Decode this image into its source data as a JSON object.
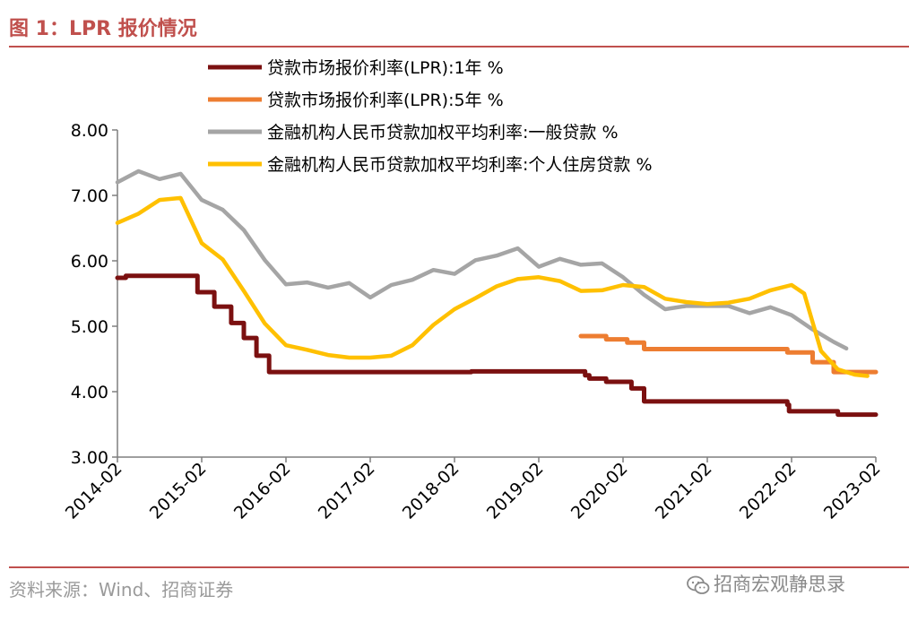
{
  "header": {
    "title": "图 1：LPR 报价情况"
  },
  "footer": {
    "source": "资料来源：Wind、招商证券",
    "watermark": "招商宏观静思录",
    "watermark_icon": "wechat-icon"
  },
  "colors": {
    "accent": "#c0504d",
    "lpr1y": "#7b1010",
    "lpr5y": "#ed7d31",
    "general": "#a5a5a5",
    "mortgage": "#ffc000"
  },
  "chart_data": {
    "type": "line",
    "title": "",
    "xlabel": "",
    "ylabel": "",
    "ylim": [
      3.0,
      8.0
    ],
    "yticks": [
      "3.00",
      "4.00",
      "5.00",
      "6.00",
      "7.00",
      "8.00"
    ],
    "xlim": [
      "2014-02",
      "2023-02"
    ],
    "xticks": [
      "2014-02",
      "2015-02",
      "2016-02",
      "2017-02",
      "2018-02",
      "2019-02",
      "2020-02",
      "2021-02",
      "2022-02",
      "2023-02"
    ],
    "grid": false,
    "legend": "top-right",
    "series": [
      {
        "name": "贷款市场报价利率(LPR):1年 %",
        "color": "#7b1010",
        "step": true,
        "width": 5,
        "points": [
          [
            0,
            5.74
          ],
          [
            0.1,
            5.77
          ],
          [
            0.4,
            5.77
          ],
          [
            0.9,
            5.77
          ],
          [
            0.95,
            5.52
          ],
          [
            1.1,
            5.52
          ],
          [
            1.15,
            5.3
          ],
          [
            1.3,
            5.3
          ],
          [
            1.35,
            5.05
          ],
          [
            1.45,
            5.05
          ],
          [
            1.5,
            4.82
          ],
          [
            1.6,
            4.82
          ],
          [
            1.65,
            4.55
          ],
          [
            1.75,
            4.55
          ],
          [
            1.8,
            4.3
          ],
          [
            4,
            4.3
          ],
          [
            4.2,
            4.31
          ],
          [
            5.5,
            4.31
          ],
          [
            5.55,
            4.25
          ],
          [
            5.6,
            4.2
          ],
          [
            5.75,
            4.2
          ],
          [
            5.8,
            4.15
          ],
          [
            6,
            4.15
          ],
          [
            6.1,
            4.05
          ],
          [
            6.2,
            4.05
          ],
          [
            6.25,
            3.85
          ],
          [
            7.9,
            3.85
          ],
          [
            7.95,
            3.8
          ],
          [
            7.97,
            3.7
          ],
          [
            8.5,
            3.7
          ],
          [
            8.55,
            3.65
          ],
          [
            9,
            3.65
          ]
        ]
      },
      {
        "name": "贷款市场报价利率(LPR):5年 %",
        "color": "#ed7d31",
        "step": true,
        "width": 5,
        "points": [
          [
            5.5,
            4.85
          ],
          [
            5.75,
            4.85
          ],
          [
            5.8,
            4.8
          ],
          [
            6,
            4.8
          ],
          [
            6.05,
            4.75
          ],
          [
            6.2,
            4.75
          ],
          [
            6.25,
            4.65
          ],
          [
            7.9,
            4.65
          ],
          [
            7.95,
            4.6
          ],
          [
            8.2,
            4.6
          ],
          [
            8.25,
            4.45
          ],
          [
            8.45,
            4.45
          ],
          [
            8.5,
            4.3
          ],
          [
            9,
            4.3
          ]
        ]
      },
      {
        "name": "金融机构人民币贷款加权平均利率:一般贷款 %",
        "color": "#a5a5a5",
        "step": false,
        "width": 4.5,
        "points": [
          [
            0,
            7.2
          ],
          [
            0.25,
            7.37
          ],
          [
            0.5,
            7.25
          ],
          [
            0.75,
            7.33
          ],
          [
            1,
            6.93
          ],
          [
            1.25,
            6.78
          ],
          [
            1.5,
            6.47
          ],
          [
            1.75,
            6.01
          ],
          [
            2,
            5.64
          ],
          [
            2.25,
            5.67
          ],
          [
            2.5,
            5.59
          ],
          [
            2.75,
            5.66
          ],
          [
            3,
            5.44
          ],
          [
            3.25,
            5.63
          ],
          [
            3.5,
            5.71
          ],
          [
            3.75,
            5.86
          ],
          [
            4,
            5.8
          ],
          [
            4.25,
            6.01
          ],
          [
            4.5,
            6.08
          ],
          [
            4.75,
            6.19
          ],
          [
            5,
            5.91
          ],
          [
            5.25,
            6.03
          ],
          [
            5.5,
            5.94
          ],
          [
            5.75,
            5.96
          ],
          [
            6,
            5.75
          ],
          [
            6.25,
            5.48
          ],
          [
            6.5,
            5.26
          ],
          [
            6.75,
            5.31
          ],
          [
            7,
            5.31
          ],
          [
            7.25,
            5.31
          ],
          [
            7.5,
            5.2
          ],
          [
            7.75,
            5.29
          ],
          [
            8,
            5.17
          ],
          [
            8.25,
            4.95
          ],
          [
            8.5,
            4.76
          ],
          [
            8.65,
            4.66
          ]
        ]
      },
      {
        "name": "金融机构人民币贷款加权平均利率:个人住房贷款 %",
        "color": "#ffc000",
        "step": false,
        "width": 4.5,
        "points": [
          [
            0,
            6.58
          ],
          [
            0.25,
            6.72
          ],
          [
            0.5,
            6.93
          ],
          [
            0.75,
            6.96
          ],
          [
            1,
            6.27
          ],
          [
            1.25,
            6.02
          ],
          [
            1.5,
            5.54
          ],
          [
            1.75,
            5.04
          ],
          [
            2,
            4.71
          ],
          [
            2.25,
            4.64
          ],
          [
            2.5,
            4.56
          ],
          [
            2.75,
            4.52
          ],
          [
            3,
            4.52
          ],
          [
            3.25,
            4.55
          ],
          [
            3.5,
            4.71
          ],
          [
            3.75,
            5.02
          ],
          [
            4,
            5.26
          ],
          [
            4.25,
            5.43
          ],
          [
            4.5,
            5.61
          ],
          [
            4.75,
            5.72
          ],
          [
            5,
            5.75
          ],
          [
            5.25,
            5.69
          ],
          [
            5.5,
            5.54
          ],
          [
            5.75,
            5.55
          ],
          [
            6,
            5.63
          ],
          [
            6.25,
            5.6
          ],
          [
            6.5,
            5.42
          ],
          [
            6.75,
            5.37
          ],
          [
            7,
            5.34
          ],
          [
            7.25,
            5.36
          ],
          [
            7.5,
            5.42
          ],
          [
            7.75,
            5.55
          ],
          [
            8,
            5.63
          ],
          [
            8.15,
            5.5
          ],
          [
            8.35,
            4.62
          ],
          [
            8.55,
            4.34
          ],
          [
            8.75,
            4.26
          ],
          [
            8.9,
            4.24
          ]
        ]
      }
    ]
  }
}
